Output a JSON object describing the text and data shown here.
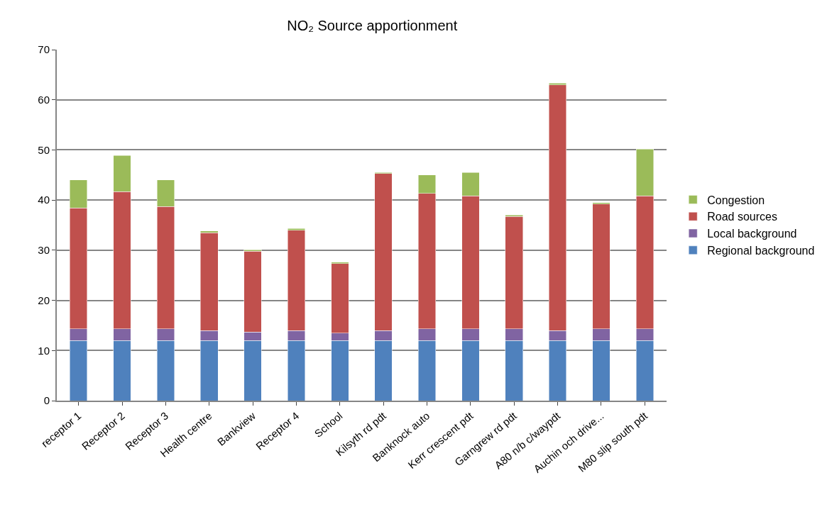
{
  "chart_data": {
    "type": "bar",
    "title": "NO₂ Source apportionment",
    "stacked": true,
    "grid": "y",
    "legend": "right",
    "ylim": [
      0,
      70
    ],
    "yticks": [
      0,
      10,
      20,
      30,
      40,
      50,
      60,
      70
    ],
    "categories": [
      "receptor 1",
      "Receptor 2",
      "Receptor 3",
      "Health centre",
      "Bankview",
      "Receptor 4",
      "School",
      "Kilsyth rd pdt",
      "Banknock auto",
      "Kerr crescent pdt",
      "Garngrew rd pdt",
      "A80 n/b c/waypdt",
      "Auchin och drive...",
      "M80 slip south pdt"
    ],
    "series": [
      {
        "name": "Regional background",
        "color": "#4f81bd",
        "values": [
          12,
          12,
          12,
          12,
          12,
          12,
          12,
          12,
          12,
          12,
          12,
          12,
          12,
          12
        ]
      },
      {
        "name": "Local background",
        "color": "#8064a2",
        "values": [
          2.3,
          2.3,
          2.3,
          2.0,
          1.7,
          2.0,
          1.5,
          2.0,
          2.3,
          2.3,
          2.3,
          2.0,
          2.3,
          2.3
        ]
      },
      {
        "name": "Road sources",
        "color": "#c0504d",
        "values": [
          24.1,
          27.4,
          24.4,
          19.5,
          16.1,
          20.0,
          13.8,
          31.3,
          27.0,
          26.5,
          22.4,
          49.0,
          24.9,
          26.5
        ]
      },
      {
        "name": "Congestion",
        "color": "#9bbb59",
        "values": [
          5.6,
          7.2,
          5.3,
          0.3,
          0.3,
          0.3,
          0.3,
          0.2,
          3.7,
          4.7,
          0.3,
          0.3,
          0.3,
          9.4
        ]
      }
    ]
  }
}
